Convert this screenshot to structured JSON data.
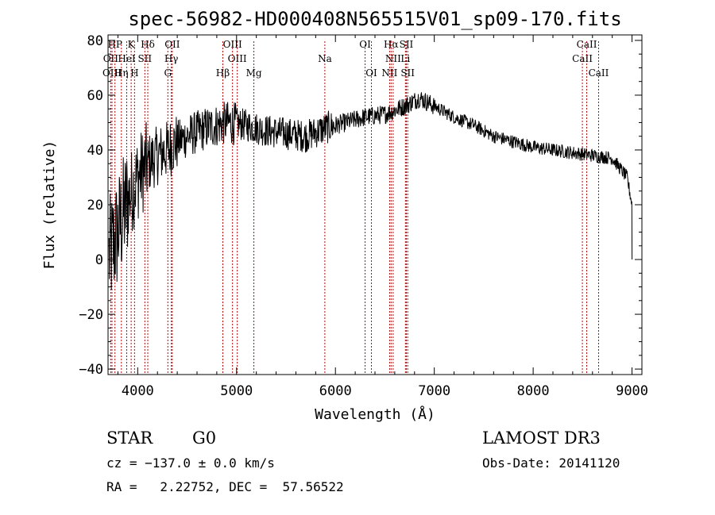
{
  "chart_data": {
    "type": "line",
    "title": "spec-56982-HD000408N565515V01_sp09-170.fits",
    "xlabel": "Wavelength (Å)",
    "ylabel": "Flux (relative)",
    "xlim": [
      3700,
      9100
    ],
    "ylim": [
      -42,
      82
    ],
    "xticks": [
      4000,
      5000,
      6000,
      7000,
      8000,
      9000
    ],
    "yticks": [
      -40,
      -20,
      0,
      20,
      40,
      60,
      80
    ],
    "grid": false,
    "colors": {
      "spectrum": "#000000",
      "lines": "#cc0000",
      "axes": "#000000"
    },
    "spectrum_anchors": [
      {
        "x": 3700,
        "y": 0
      },
      {
        "x": 3800,
        "y": 10
      },
      {
        "x": 3900,
        "y": 22
      },
      {
        "x": 4000,
        "y": 30
      },
      {
        "x": 4100,
        "y": 35
      },
      {
        "x": 4200,
        "y": 38
      },
      {
        "x": 4300,
        "y": 40
      },
      {
        "x": 4400,
        "y": 43
      },
      {
        "x": 4500,
        "y": 45
      },
      {
        "x": 4700,
        "y": 48
      },
      {
        "x": 4900,
        "y": 50
      },
      {
        "x": 5100,
        "y": 49
      },
      {
        "x": 5300,
        "y": 47
      },
      {
        "x": 5500,
        "y": 46
      },
      {
        "x": 5700,
        "y": 45
      },
      {
        "x": 5900,
        "y": 48
      },
      {
        "x": 6100,
        "y": 50
      },
      {
        "x": 6300,
        "y": 52
      },
      {
        "x": 6500,
        "y": 53
      },
      {
        "x": 6700,
        "y": 56
      },
      {
        "x": 6850,
        "y": 59
      },
      {
        "x": 7000,
        "y": 56
      },
      {
        "x": 7200,
        "y": 52
      },
      {
        "x": 7400,
        "y": 49
      },
      {
        "x": 7600,
        "y": 45
      },
      {
        "x": 7800,
        "y": 43
      },
      {
        "x": 8000,
        "y": 41
      },
      {
        "x": 8200,
        "y": 40
      },
      {
        "x": 8400,
        "y": 39
      },
      {
        "x": 8600,
        "y": 38
      },
      {
        "x": 8800,
        "y": 37
      },
      {
        "x": 8950,
        "y": 30
      },
      {
        "x": 9000,
        "y": 20
      }
    ],
    "spectral_lines": [
      {
        "label": "HP",
        "x": 3770,
        "row": 1
      },
      {
        "label": "K",
        "x": 3934,
        "row": 1
      },
      {
        "label": "Hδ",
        "x": 4102,
        "row": 1
      },
      {
        "label": "OII",
        "x": 4350,
        "row": 1
      },
      {
        "label": "OIII",
        "x": 4959,
        "row": 1
      },
      {
        "label": "OI",
        "x": 6300,
        "row": 1
      },
      {
        "label": "Hα",
        "x": 6563,
        "row": 1
      },
      {
        "label": "SII",
        "x": 6717,
        "row": 1
      },
      {
        "label": "CaII",
        "x": 8542,
        "row": 1
      },
      {
        "label": "OII",
        "x": 3727,
        "row": 2
      },
      {
        "label": "HeI",
        "x": 3889,
        "row": 2
      },
      {
        "label": "SII",
        "x": 4072,
        "row": 2
      },
      {
        "label": "Hγ",
        "x": 4340,
        "row": 2
      },
      {
        "label": "OIII",
        "x": 5007,
        "row": 2
      },
      {
        "label": "Na",
        "x": 5893,
        "row": 2
      },
      {
        "label": "NII",
        "x": 6584,
        "row": 2
      },
      {
        "label": "Li",
        "x": 6708,
        "row": 2
      },
      {
        "label": "CaII",
        "x": 8498,
        "row": 2
      },
      {
        "label": "OIII",
        "x": 3740,
        "row": 3
      },
      {
        "label": "Hη",
        "x": 3835,
        "row": 3
      },
      {
        "label": "H",
        "x": 3968,
        "row": 3
      },
      {
        "label": "G",
        "x": 4305,
        "row": 3
      },
      {
        "label": "Hβ",
        "x": 4861,
        "row": 3
      },
      {
        "label": "Mg",
        "x": 5175,
        "row": 3
      },
      {
        "label": "OI",
        "x": 6364,
        "row": 3
      },
      {
        "label": "NII",
        "x": 6548,
        "row": 3
      },
      {
        "label": "SII",
        "x": 6731,
        "row": 3
      },
      {
        "label": "CaII",
        "x": 8662,
        "row": 3
      }
    ]
  },
  "info": {
    "object_class": "STAR",
    "subclass": "G0",
    "survey": "LAMOST DR3",
    "redshift": "cz = −137.0 ± 0.0 km/s",
    "obs_date": "Obs-Date: 20141120",
    "coords": "RA =   2.22752, DEC =  57.56522"
  }
}
